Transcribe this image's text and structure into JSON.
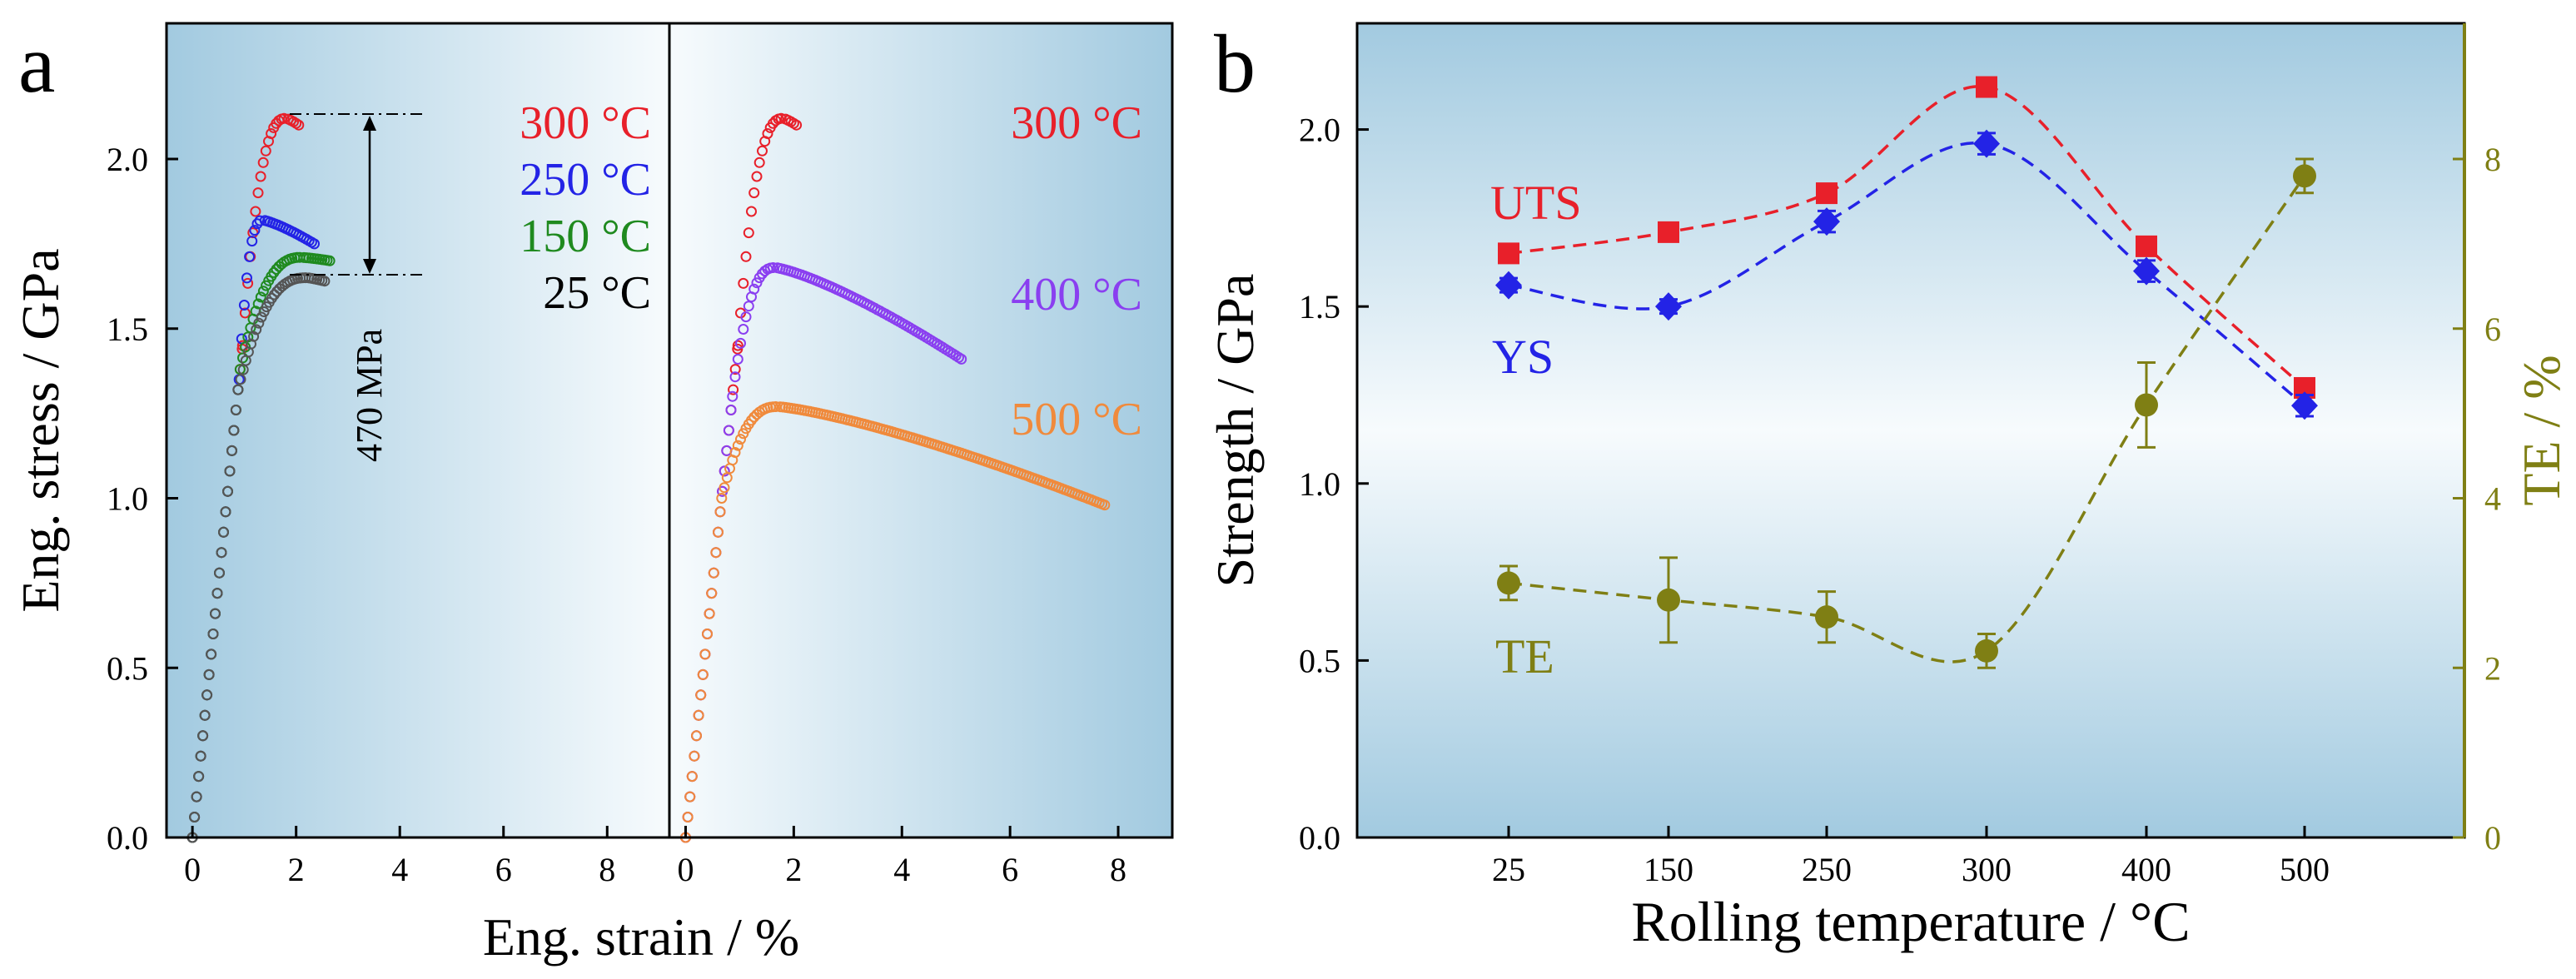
{
  "chart_data": [
    {
      "panel": "a",
      "type": "scatter",
      "title": "",
      "xlabel": "Eng. strain / %",
      "ylabel": "Eng. stress / GPa",
      "ylim": [
        0.0,
        2.4
      ],
      "yticks": [
        "0.0",
        "0.5",
        "1.0",
        "1.5",
        "2.0"
      ],
      "subplots": [
        {
          "side": "left",
          "xlim": [
            -0.5,
            9.2
          ],
          "xticks": [
            "0",
            "2",
            "4",
            "6",
            "8"
          ],
          "series": [
            {
              "name": "300 °C",
              "color": "#e8202a",
              "E": 150,
              "yield": 1.45,
              "uts": 2.12,
              "strain_at_uts": 1.8,
              "fracture_strain": 2.05,
              "fracture_stress": 2.1
            },
            {
              "name": "250 °C",
              "color": "#2323e6",
              "E": 150,
              "yield": 1.35,
              "uts": 1.82,
              "strain_at_uts": 1.35,
              "fracture_strain": 2.35,
              "fracture_stress": 1.75
            },
            {
              "name": "150 °C",
              "color": "#1f8a1f",
              "E": 150,
              "yield": 1.38,
              "uts": 1.71,
              "strain_at_uts": 2.1,
              "fracture_strain": 2.65,
              "fracture_stress": 1.7
            },
            {
              "name": "25 °C",
              "color": "#555555",
              "E": 150,
              "yield": 1.32,
              "uts": 1.65,
              "strain_at_uts": 2.2,
              "fracture_strain": 2.55,
              "fracture_stress": 1.64
            }
          ],
          "annotation": {
            "text": "470 MPa",
            "y_top": 2.12,
            "y_bottom": 1.65
          }
        },
        {
          "side": "right",
          "xlim": [
            -0.3,
            9.0
          ],
          "xticks": [
            "0",
            "2",
            "4",
            "6",
            "8"
          ],
          "series": [
            {
              "name": "300 °C",
              "color": "#e8202a",
              "E": 150,
              "yield": 1.45,
              "uts": 2.12,
              "strain_at_uts": 1.8,
              "fracture_strain": 2.05,
              "fracture_stress": 2.1
            },
            {
              "name": "400 °C",
              "color": "#8a3ff0",
              "E": 150,
              "yield": 1.3,
              "uts": 1.68,
              "strain_at_uts": 1.65,
              "fracture_strain": 5.1,
              "fracture_stress": 1.41
            },
            {
              "name": "500 °C",
              "color": "#f08a3c",
              "E": 150,
              "yield": 1.0,
              "uts": 1.27,
              "strain_at_uts": 1.7,
              "fracture_strain": 7.75,
              "fracture_stress": 0.98
            }
          ]
        }
      ]
    },
    {
      "panel": "b",
      "type": "line",
      "title": "",
      "xlabel": "Rolling temperature / °C",
      "ylabel": "Strength / GPa",
      "y2label": "TE / %",
      "categories": [
        "25",
        "150",
        "250",
        "300",
        "400",
        "500"
      ],
      "ylim": [
        0.0,
        2.3
      ],
      "yticks": [
        "0.0",
        "0.5",
        "1.0",
        "1.5",
        "2.0"
      ],
      "y2lim": [
        0,
        9.6
      ],
      "y2ticks": [
        "0",
        "2",
        "4",
        "6",
        "8"
      ],
      "series": [
        {
          "name": "UTS",
          "axis": "left",
          "marker": "square",
          "color": "#e8202a",
          "values": [
            1.65,
            1.71,
            1.82,
            2.12,
            1.67,
            1.27
          ],
          "errors": [
            0.02,
            0.02,
            0.02,
            0.02,
            0.02,
            0.02
          ]
        },
        {
          "name": "YS",
          "axis": "left",
          "marker": "diamond",
          "color": "#2323e6",
          "values": [
            1.56,
            1.5,
            1.74,
            1.96,
            1.6,
            1.22
          ],
          "errors": [
            0.02,
            0.02,
            0.03,
            0.03,
            0.03,
            0.03
          ]
        },
        {
          "name": "TE",
          "axis": "right",
          "marker": "circle",
          "color": "#7f7f14",
          "values": [
            3.0,
            2.8,
            2.6,
            2.2,
            5.1,
            7.8
          ],
          "errors": [
            0.2,
            0.5,
            0.3,
            0.2,
            0.5,
            0.2
          ]
        }
      ]
    }
  ],
  "labels": {
    "panel_a": "a",
    "panel_b": "b",
    "annotation_a": "470 MPa",
    "a_left_legend": [
      "300 °C",
      "250 °C",
      "150 °C",
      "25 °C"
    ],
    "a_right_legend": [
      "300 °C",
      "400 °C",
      "500 °C"
    ],
    "b_series": [
      "UTS",
      "YS",
      "TE"
    ]
  },
  "colors": {
    "panel_bg_dark": "#a2cae0",
    "panel_bg_light": "#f4f9fc",
    "axis": "#000000",
    "te_axis": "#7f7f14"
  }
}
